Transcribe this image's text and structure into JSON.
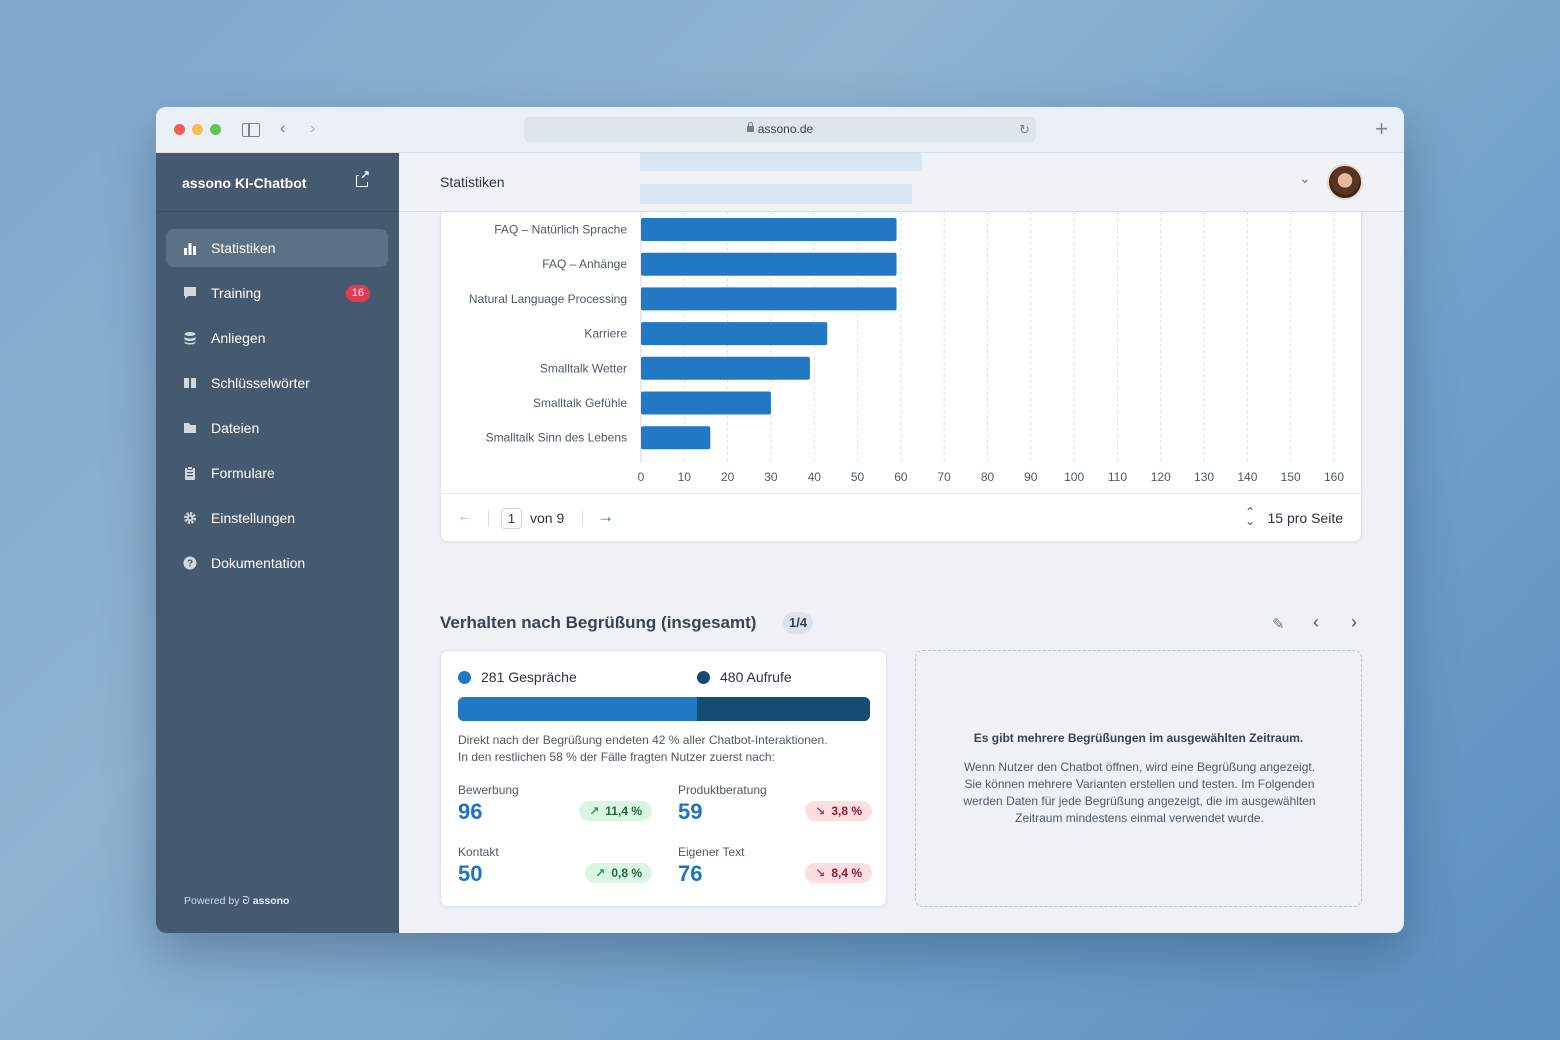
{
  "browser": {
    "url": "assono.de"
  },
  "sidebar": {
    "brand": "assono KI-Chatbot",
    "items": [
      {
        "label": "Statistiken",
        "icon": "bar-chart-icon",
        "active": true
      },
      {
        "label": "Training",
        "icon": "chat-bubble-icon",
        "badge": "16"
      },
      {
        "label": "Anliegen",
        "icon": "database-icon"
      },
      {
        "label": "Schlüsselwörter",
        "icon": "book-icon"
      },
      {
        "label": "Dateien",
        "icon": "folder-icon"
      },
      {
        "label": "Formulare",
        "icon": "clipboard-icon"
      },
      {
        "label": "Einstellungen",
        "icon": "gear-icon"
      },
      {
        "label": "Dokumentation",
        "icon": "help-circle-icon"
      }
    ],
    "powered_prefix": "Powered by",
    "powered_brand": "assono"
  },
  "header": {
    "title": "Statistiken"
  },
  "chart_data": {
    "type": "bar",
    "orientation": "horizontal",
    "categories": [
      "FAQ – Natürlich Sprache",
      "FAQ – Anhänge",
      "Natural Language Processing",
      "Karriere",
      "Smalltalk Wetter",
      "Smalltalk Gefühle",
      "Smalltalk Sinn des Lebens"
    ],
    "values": [
      59,
      59,
      59,
      43,
      39,
      30,
      16
    ],
    "xlim": [
      0,
      160
    ],
    "xticks": [
      "0",
      "10",
      "20",
      "30",
      "40",
      "50",
      "60",
      "70",
      "80",
      "90",
      "100",
      "110",
      "120",
      "130",
      "140",
      "150",
      "160"
    ],
    "grid": true,
    "color": "#2179c4"
  },
  "pager": {
    "current": "1",
    "of_text": "von  9",
    "per_page": "15 pro Seite"
  },
  "section": {
    "title": "Verhalten nach Begrüßung (insgesamt)",
    "counter": "1/4"
  },
  "stats": {
    "legend_a": "281 Gespräche",
    "legend_b": "480 Aufrufe",
    "color_a": "#2179c4",
    "color_b": "#164b73",
    "share_a": 0.58,
    "desc_line1": "Direkt nach der Begrüßung endeten 42 % aller Chatbot-Interaktionen.",
    "desc_line2": "In den restlichen 58 % der Fälle fragten Nutzer zuerst nach:",
    "metrics": [
      {
        "label": "Bewerbung",
        "value": "96",
        "trend": "11,4 %",
        "direction": "up"
      },
      {
        "label": "Produktberatung",
        "value": "59",
        "trend": "3,8 %",
        "direction": "down"
      },
      {
        "label": "Kontakt",
        "value": "50",
        "trend": "0,8 %",
        "direction": "up"
      },
      {
        "label": "Eigener Text",
        "value": "76",
        "trend": "8,4 %",
        "direction": "down"
      }
    ]
  },
  "info": {
    "title": "Es gibt mehrere Begrüßungen im ausgewählten Zeitraum.",
    "line1": "Wenn Nutzer den Chatbot öffnen, wird eine Begrüßung angezeigt.",
    "line2": "Sie können mehrere Varianten erstellen und testen. Im Folgenden",
    "line3": "werden Daten für jede Begrüßung angezeigt, die im ausgewählten",
    "line4": "Zeitraum mindestens einmal verwendet wurde."
  }
}
